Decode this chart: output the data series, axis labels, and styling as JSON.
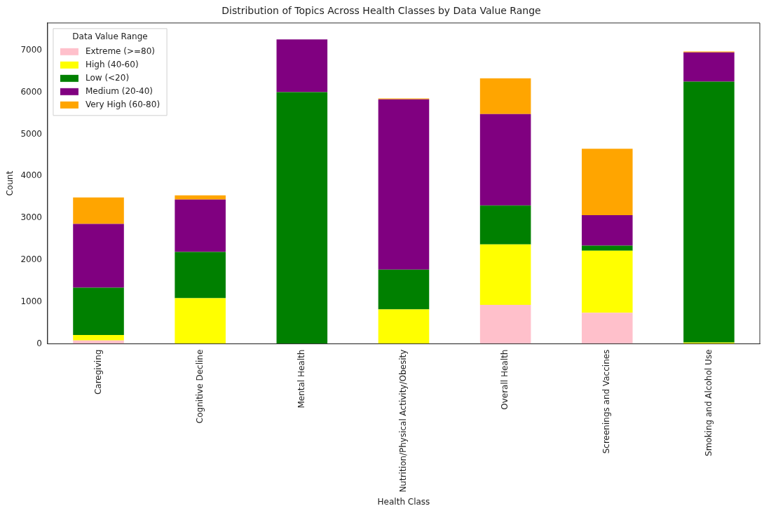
{
  "chart_data": {
    "type": "bar",
    "title": "Distribution of Topics Across Health Classes by Data Value Range",
    "xlabel": "Health Class",
    "ylabel": "Count",
    "legend_title": "Data Value Range",
    "categories": [
      "Caregiving",
      "Cognitive Decline",
      "Mental Health",
      "Nutrition/Physical Activity/Obesity",
      "Overall Health",
      "Screenings and Vaccines",
      "Smoking and Alcohol Use"
    ],
    "stacked": true,
    "legend": "top left",
    "grid": false,
    "ylim": [
      0,
      7650
    ],
    "yticks": [
      0,
      1000,
      2000,
      3000,
      4000,
      5000,
      6000,
      7000
    ],
    "series": [
      {
        "name": "Extreme (>=80)",
        "color": "#ffc0cb",
        "values": [
          80,
          null,
          0,
          0,
          930,
          740,
          0
        ]
      },
      {
        "name": "High (40-60)",
        "color": "#ffff00",
        "values": [
          130,
          1090,
          null,
          820,
          1440,
          1480,
          30
        ]
      },
      {
        "name": "Low (<20)",
        "color": "#008000",
        "values": [
          1130,
          1100,
          6000,
          950,
          930,
          120,
          6220
        ]
      },
      {
        "name": "Medium (20-40)",
        "color": "#800080",
        "values": [
          1520,
          1250,
          1260,
          4060,
          2180,
          730,
          700
        ]
      },
      {
        "name": "Very High (60-80)",
        "color": "#ffa500",
        "values": [
          630,
          100,
          0,
          20,
          850,
          1580,
          20
        ]
      }
    ]
  }
}
